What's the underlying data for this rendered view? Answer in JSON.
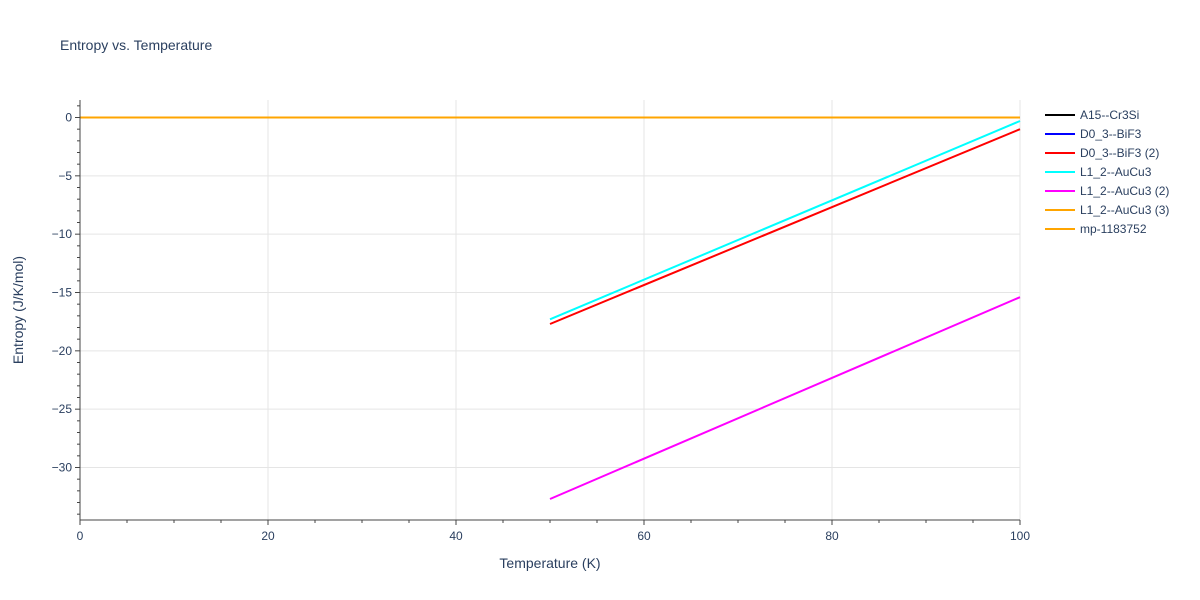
{
  "chart_data": {
    "type": "line",
    "title": "Entropy vs. Temperature",
    "xlabel": "Temperature (K)",
    "ylabel": "Entropy (J/K/mol)",
    "xlim": [
      0,
      100
    ],
    "ylim": [
      -34.5,
      1.5
    ],
    "x_ticks": [
      0,
      20,
      40,
      60,
      80,
      100
    ],
    "y_ticks": [
      0,
      -5,
      -10,
      -15,
      -20,
      -25,
      -30
    ],
    "y_tick_labels": [
      "0",
      "−5",
      "−10",
      "−15",
      "−20",
      "−25",
      "−30"
    ],
    "grid": true,
    "legend_position": "top-right",
    "series": [
      {
        "name": "A15--Cr3Si",
        "color": "#000000",
        "x": [
          0,
          100
        ],
        "y": [
          0,
          0
        ]
      },
      {
        "name": "D0_3--BiF3",
        "color": "#0000ff",
        "x": [
          0,
          100
        ],
        "y": [
          0,
          0
        ]
      },
      {
        "name": "D0_3--BiF3 (2)",
        "color": "#ff0000",
        "x": [
          50,
          100
        ],
        "y": [
          -17.7,
          -1.0
        ]
      },
      {
        "name": "L1_2--AuCu3",
        "color": "#00ffff",
        "x": [
          50,
          100
        ],
        "y": [
          -17.3,
          -0.3
        ]
      },
      {
        "name": "L1_2--AuCu3 (2)",
        "color": "#ff00ff",
        "x": [
          50,
          100
        ],
        "y": [
          -32.7,
          -15.4
        ]
      },
      {
        "name": "L1_2--AuCu3 (3)",
        "color": "#ffa500",
        "x": [
          0,
          100
        ],
        "y": [
          0,
          0
        ]
      },
      {
        "name": "mp-1183752",
        "color": "#ffa500",
        "x": [
          0,
          100
        ],
        "y": [
          0,
          0
        ]
      }
    ]
  }
}
